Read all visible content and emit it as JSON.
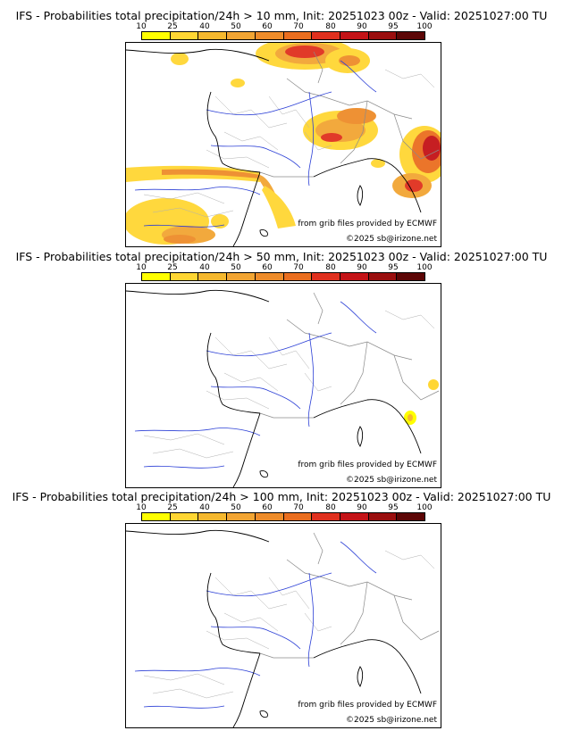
{
  "panels": [
    {
      "title": "IFS - Probabilities total precipitation/24h > 10 mm, Init: 20251023 00z - Valid: 20251027:00 TU"
    },
    {
      "title": "IFS - Probabilities total precipitation/24h > 50 mm, Init: 20251023 00z - Valid: 20251027:00 TU"
    },
    {
      "title": "IFS - Probabilities total precipitation/24h > 100 mm, Init: 20251023 00z - Valid: 20251027:00 TU"
    }
  ],
  "scale": {
    "labels": [
      "10",
      "25",
      "40",
      "50",
      "60",
      "70",
      "80",
      "90",
      "95",
      "100"
    ],
    "colors": [
      "#ffff00",
      "#ffd633",
      "#f5b82e",
      "#f2a533",
      "#ee8c2a",
      "#ea6e1f",
      "#e0301e",
      "#c41317",
      "#9a0e0e",
      "#5c0606"
    ]
  },
  "credits": {
    "source": "from grib files provided by ECMWF",
    "copyright": "©2025 sb@irizone.net"
  },
  "colors": {
    "river": "#2b3fd6",
    "border": "#8a8a8a",
    "coast": "#000000"
  }
}
